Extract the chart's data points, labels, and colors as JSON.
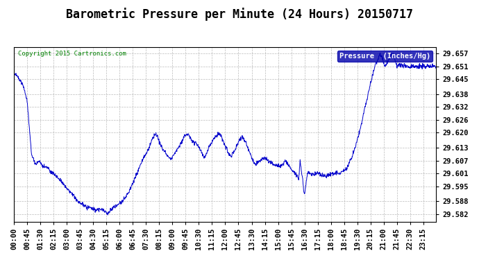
{
  "title": "Barometric Pressure per Minute (24 Hours) 20150717",
  "copyright": "Copyright 2015 Cartronics.com",
  "legend_label": "Pressure  (Inches/Hg)",
  "ylabel_ticks": [
    29.582,
    29.588,
    29.595,
    29.601,
    29.607,
    29.613,
    29.62,
    29.626,
    29.632,
    29.638,
    29.645,
    29.651,
    29.657
  ],
  "ylim": [
    29.5785,
    29.66
  ],
  "line_color": "#0000CC",
  "background_color": "#ffffff",
  "plot_bg_color": "#ffffff",
  "title_fontsize": 12,
  "tick_label_fontsize": 7.5,
  "xtick_interval_minutes": 45,
  "total_minutes": 1440,
  "keypoints": [
    [
      0,
      29.648
    ],
    [
      15,
      29.646
    ],
    [
      30,
      29.643
    ],
    [
      45,
      29.635
    ],
    [
      60,
      29.61
    ],
    [
      75,
      29.605
    ],
    [
      85,
      29.607
    ],
    [
      95,
      29.605
    ],
    [
      105,
      29.604
    ],
    [
      115,
      29.604
    ],
    [
      125,
      29.602
    ],
    [
      135,
      29.601
    ],
    [
      150,
      29.599
    ],
    [
      165,
      29.597
    ],
    [
      180,
      29.594
    ],
    [
      200,
      29.591
    ],
    [
      220,
      29.588
    ],
    [
      240,
      29.586
    ],
    [
      260,
      29.585
    ],
    [
      280,
      29.584
    ],
    [
      300,
      29.584
    ],
    [
      315,
      29.583
    ],
    [
      320,
      29.582
    ],
    [
      325,
      29.583
    ],
    [
      330,
      29.584
    ],
    [
      340,
      29.585
    ],
    [
      350,
      29.586
    ],
    [
      360,
      29.587
    ],
    [
      375,
      29.589
    ],
    [
      390,
      29.592
    ],
    [
      400,
      29.595
    ],
    [
      410,
      29.598
    ],
    [
      420,
      29.601
    ],
    [
      430,
      29.605
    ],
    [
      440,
      29.608
    ],
    [
      450,
      29.61
    ],
    [
      460,
      29.613
    ],
    [
      470,
      29.617
    ],
    [
      480,
      29.619
    ],
    [
      488,
      29.619
    ],
    [
      495,
      29.616
    ],
    [
      505,
      29.613
    ],
    [
      515,
      29.611
    ],
    [
      525,
      29.609
    ],
    [
      535,
      29.608
    ],
    [
      545,
      29.61
    ],
    [
      555,
      29.612
    ],
    [
      565,
      29.614
    ],
    [
      575,
      29.617
    ],
    [
      585,
      29.619
    ],
    [
      595,
      29.619
    ],
    [
      600,
      29.618
    ],
    [
      610,
      29.616
    ],
    [
      620,
      29.615
    ],
    [
      630,
      29.613
    ],
    [
      640,
      29.611
    ],
    [
      648,
      29.608
    ],
    [
      655,
      29.61
    ],
    [
      665,
      29.613
    ],
    [
      675,
      29.616
    ],
    [
      685,
      29.618
    ],
    [
      695,
      29.619
    ],
    [
      703,
      29.619
    ],
    [
      710,
      29.617
    ],
    [
      720,
      29.614
    ],
    [
      730,
      29.611
    ],
    [
      740,
      29.609
    ],
    [
      750,
      29.611
    ],
    [
      760,
      29.614
    ],
    [
      770,
      29.617
    ],
    [
      778,
      29.618
    ],
    [
      785,
      29.617
    ],
    [
      795,
      29.614
    ],
    [
      805,
      29.61
    ],
    [
      815,
      29.607
    ],
    [
      825,
      29.605
    ],
    [
      835,
      29.607
    ],
    [
      845,
      29.608
    ],
    [
      855,
      29.608
    ],
    [
      865,
      29.607
    ],
    [
      875,
      29.606
    ],
    [
      885,
      29.605
    ],
    [
      895,
      29.605
    ],
    [
      905,
      29.604
    ],
    [
      915,
      29.605
    ],
    [
      925,
      29.607
    ],
    [
      935,
      29.605
    ],
    [
      945,
      29.603
    ],
    [
      955,
      29.601
    ],
    [
      965,
      29.6
    ],
    [
      970,
      29.598
    ],
    [
      975,
      29.607
    ],
    [
      978,
      29.604
    ],
    [
      981,
      29.601
    ],
    [
      984,
      29.598
    ],
    [
      987,
      29.593
    ],
    [
      990,
      29.591
    ],
    [
      993,
      29.594
    ],
    [
      996,
      29.597
    ],
    [
      1000,
      29.601
    ],
    [
      1010,
      29.601
    ],
    [
      1020,
      29.601
    ],
    [
      1030,
      29.601
    ],
    [
      1040,
      29.601
    ],
    [
      1050,
      29.6
    ],
    [
      1060,
      29.6
    ],
    [
      1070,
      29.6
    ],
    [
      1080,
      29.601
    ],
    [
      1090,
      29.601
    ],
    [
      1100,
      29.601
    ],
    [
      1110,
      29.601
    ],
    [
      1120,
      29.602
    ],
    [
      1130,
      29.603
    ],
    [
      1140,
      29.605
    ],
    [
      1150,
      29.608
    ],
    [
      1160,
      29.612
    ],
    [
      1170,
      29.617
    ],
    [
      1180,
      29.622
    ],
    [
      1190,
      29.628
    ],
    [
      1200,
      29.634
    ],
    [
      1210,
      29.64
    ],
    [
      1220,
      29.646
    ],
    [
      1230,
      29.651
    ],
    [
      1240,
      29.654
    ],
    [
      1248,
      29.657
    ],
    [
      1255,
      29.655
    ],
    [
      1263,
      29.651
    ],
    [
      1270,
      29.652
    ],
    [
      1278,
      29.654
    ],
    [
      1285,
      29.656
    ],
    [
      1290,
      29.657
    ],
    [
      1298,
      29.654
    ],
    [
      1305,
      29.651
    ],
    [
      1315,
      29.652
    ],
    [
      1325,
      29.651
    ],
    [
      1335,
      29.651
    ],
    [
      1345,
      29.651
    ],
    [
      1355,
      29.651
    ],
    [
      1365,
      29.651
    ],
    [
      1375,
      29.651
    ],
    [
      1385,
      29.651
    ],
    [
      1395,
      29.651
    ],
    [
      1399,
      29.651
    ]
  ]
}
